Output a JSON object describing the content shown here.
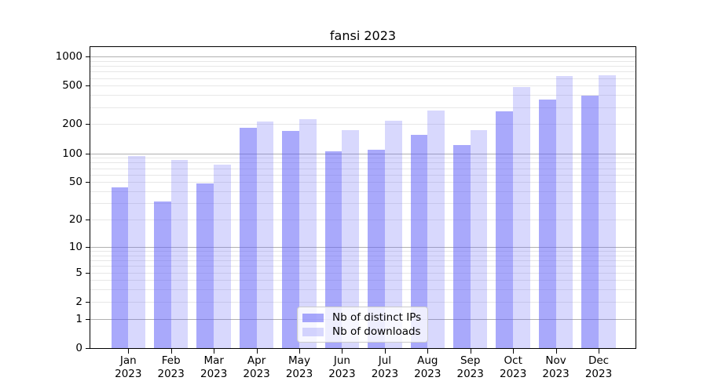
{
  "chart_data": {
    "type": "bar",
    "title": "fansi 2023",
    "categories": [
      "Jan",
      "Feb",
      "Mar",
      "Apr",
      "May",
      "Jun",
      "Jul",
      "Aug",
      "Sep",
      "Oct",
      "Nov",
      "Dec"
    ],
    "year_label": "2023",
    "series": [
      {
        "name": "Nb of distinct IPs",
        "color": "rgba(99,99,247,0.55)",
        "values": [
          44,
          31,
          48,
          185,
          171,
          105,
          109,
          156,
          122,
          273,
          361,
          392
        ]
      },
      {
        "name": "Nb of downloads",
        "color": "rgba(99,99,247,0.25)",
        "values": [
          94,
          85,
          76,
          214,
          224,
          174,
          216,
          277,
          174,
          487,
          624,
          643
        ]
      }
    ],
    "yscale": "log1p",
    "ylim": [
      0,
      1250
    ],
    "yticks": [
      0,
      1,
      2,
      5,
      10,
      20,
      50,
      100,
      200,
      500,
      1000
    ],
    "major_gridlines": [
      1,
      10,
      100,
      1000
    ],
    "minor_gridlines": [
      2,
      3,
      4,
      5,
      6,
      7,
      8,
      9,
      20,
      30,
      40,
      50,
      60,
      70,
      80,
      90,
      200,
      300,
      400,
      500,
      600,
      700,
      800,
      900
    ],
    "grid": "on",
    "xlabel": "",
    "ylabel": "",
    "legend_position": "lower center"
  },
  "colors": {
    "bar_distinct_ips": "rgba(99,99,247,0.55)",
    "bar_downloads": "rgba(99,99,247,0.25)",
    "major_grid": "#b0b0b0",
    "minor_grid": "#e7e7e7",
    "spine": "#000000",
    "legend_border": "#cbcbcb"
  },
  "legend": {
    "items": [
      {
        "label": "Nb of distinct IPs"
      },
      {
        "label": "Nb of downloads"
      }
    ]
  }
}
